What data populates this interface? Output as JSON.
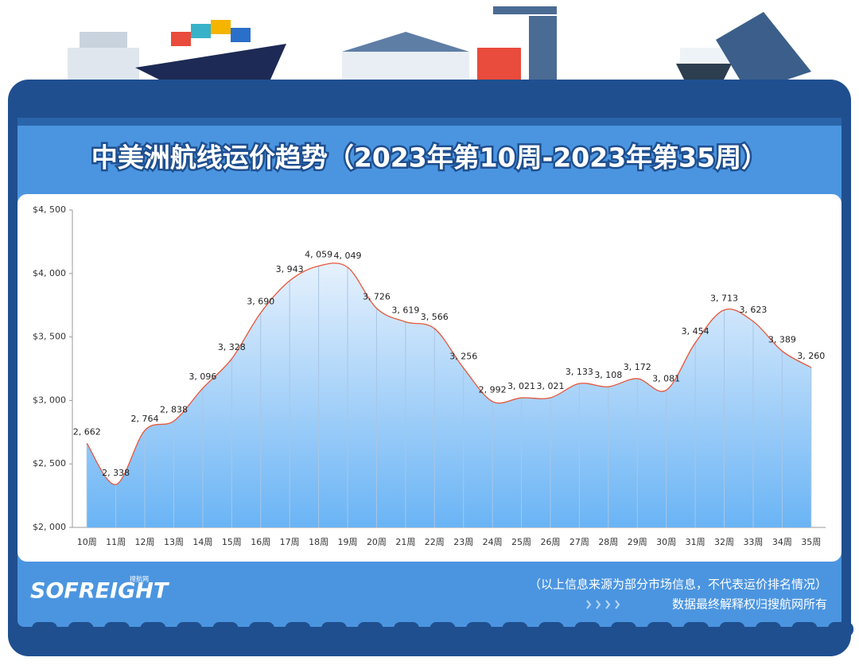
{
  "header": {
    "title": "中美洲航线运价趋势（2023年第10周-2023年第35周）"
  },
  "chart_data": {
    "type": "area",
    "categories": [
      "10周",
      "11周",
      "12周",
      "13周",
      "14周",
      "15周",
      "16周",
      "17周",
      "18周",
      "19周",
      "20周",
      "21周",
      "22周",
      "23周",
      "24周",
      "25周",
      "26周",
      "27周",
      "28周",
      "29周",
      "30周",
      "31周",
      "32周",
      "33周",
      "34周",
      "35周"
    ],
    "values": [
      2662,
      2338,
      2764,
      2838,
      3096,
      3328,
      3690,
      3943,
      4059,
      4049,
      3726,
      3619,
      3566,
      3256,
      2992,
      3021,
      3021,
      3133,
      3108,
      3172,
      3081,
      3454,
      3713,
      3623,
      3389,
      3260
    ],
    "value_labels": [
      "2, 662",
      "2, 338",
      "2, 764",
      "2, 838",
      "3, 096",
      "3, 328",
      "3, 690",
      "3, 943",
      "4, 059",
      "4, 049",
      "3, 726",
      "3, 619",
      "3, 566",
      "3, 256",
      "2, 992",
      "3, 021",
      "3, 021",
      "3, 133",
      "3, 108",
      "3, 172",
      "3, 081",
      "3, 454",
      "3, 713",
      "3, 623",
      "3, 389",
      "3, 260"
    ],
    "color": "#e8553a",
    "ylim": [
      2000,
      4500
    ],
    "yticks": [
      {
        "value": 2000,
        "label": "$2, 000"
      },
      {
        "value": 2500,
        "label": "$2, 500"
      },
      {
        "value": 3000,
        "label": "$3, 000"
      },
      {
        "value": 3500,
        "label": "$3, 500"
      },
      {
        "value": 4000,
        "label": "$4, 000"
      },
      {
        "value": 4500,
        "label": "$4, 500"
      }
    ]
  },
  "footer": {
    "logo": "SOFREIGHT",
    "logo_sub": "搜航网",
    "note": "（以上信息来源为部分市场信息，不代表运价排名情况）",
    "rights": "数据最终解释权归搜航网所有"
  }
}
